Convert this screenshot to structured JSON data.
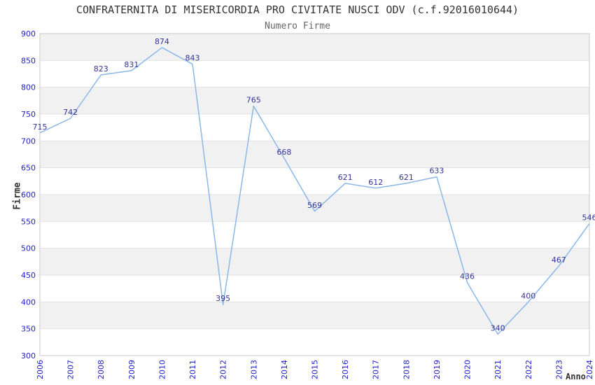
{
  "chart_data": {
    "type": "line",
    "title": "CONFRATERNITA DI MISERICORDIA PRO CIVITATE NUSCI ODV (c.f.92016010644)",
    "subtitle": "Numero Firme",
    "xlabel": "Anno",
    "ylabel": "Firme",
    "categories": [
      "2006",
      "2007",
      "2008",
      "2009",
      "2010",
      "2011",
      "2012",
      "2013",
      "2014",
      "2015",
      "2016",
      "2017",
      "2018",
      "2019",
      "2020",
      "2021",
      "2022",
      "2023",
      "2024"
    ],
    "values": [
      715,
      742,
      823,
      831,
      874,
      843,
      395,
      765,
      668,
      569,
      621,
      612,
      621,
      633,
      436,
      340,
      400,
      467,
      546
    ],
    "ylim": [
      300,
      900
    ],
    "ytick_step": 50,
    "grid": true,
    "legend": false,
    "band_pattern": "alternating-top-gray",
    "colors": {
      "line": "#8ab7e8",
      "data_label": "#333399",
      "tick_label": "#2222cc",
      "band_gray": "#f1f1f1",
      "band_white": "#ffffff",
      "gridline": "#e2e2e2",
      "border": "#c9c9c9",
      "title": "#333333",
      "subtitle": "#666666",
      "axis_label": "#333333"
    }
  }
}
